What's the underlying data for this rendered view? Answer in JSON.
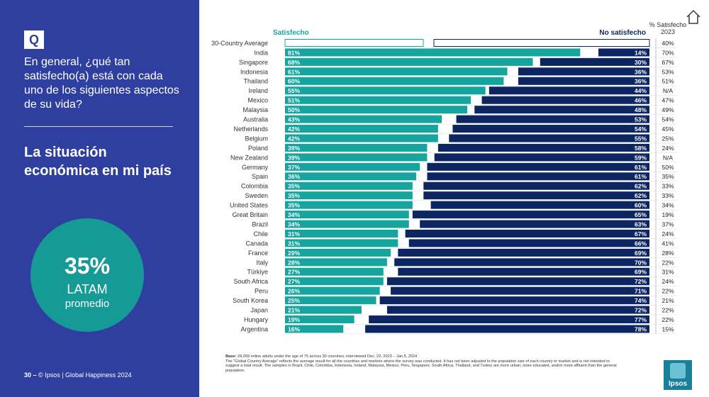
{
  "left": {
    "q_badge": "Q",
    "question": "En general, ¿qué tan satisfecho(a) está con cada uno de los siguientes aspectos de su vida?",
    "topic": "La situación económica en mi país",
    "avg_pct": "35%",
    "avg_region": "LATAM",
    "avg_label": "promedio",
    "footer_page": "30 –",
    "footer_text": "© Ipsos | Global Happiness 2024"
  },
  "notes": {
    "base_label": "Base:",
    "base_text": "24,269 online adults under the age of 75 across 30 countries, interviewed Dec. 22, 2023 – Jan.5, 2024",
    "line2": "The \"Global Country Average\" reflects the average result for all the countries and markets where the survey was conducted. It has not been adjusted to the population size of each country or market and is not intended to suggest a total result.   The samples in Brazil, Chile, Colombia, Indonesia, Ireland, Malaysia, Mexico, Peru, Singapore, South Africa, Thailand, and Turkey are more urban, more educated, and/or more affluent than the general population."
  },
  "logo": {
    "text": "Ipsos"
  },
  "colors": {
    "panel": "#2e3fa0",
    "satisfied": "#16a59e",
    "not_satisfied": "#0d2561",
    "circle": "#159a96"
  },
  "chart_data": {
    "type": "bar",
    "legend": {
      "satisfied": "Satisfecho",
      "not_satisfied": "No satisfecho"
    },
    "col_header": [
      "% Satisfecho",
      "2023"
    ],
    "countries": [
      "30-Country Average",
      "India",
      "Singapore",
      "Indonesia",
      "Thailand",
      "Ireland",
      "Mexico",
      "Malaysia",
      "Australia",
      "Netherlands",
      "Belgium",
      "Poland",
      "New Zealand",
      "Germany",
      "Spain",
      "Colombia",
      "Sweden",
      "United States",
      "Great Britain",
      "Brazil",
      "Chile",
      "Canada",
      "France",
      "Italy",
      "Türkiye",
      "South Africa",
      "Peru",
      "South Korea",
      "Japan",
      "Hungary",
      "Argentina"
    ],
    "satisfied": [
      null,
      81,
      68,
      61,
      60,
      55,
      51,
      50,
      43,
      42,
      42,
      39,
      39,
      37,
      36,
      35,
      35,
      35,
      34,
      34,
      31,
      31,
      29,
      28,
      27,
      27,
      26,
      25,
      21,
      19,
      16
    ],
    "not_satisfied": [
      null,
      14,
      30,
      36,
      36,
      44,
      46,
      48,
      53,
      54,
      55,
      58,
      59,
      61,
      61,
      62,
      62,
      60,
      65,
      63,
      67,
      66,
      69,
      70,
      69,
      72,
      71,
      74,
      72,
      77,
      78
    ],
    "satisfied_labels": [
      "",
      "81%",
      "68%",
      "61%",
      "60%",
      "55%",
      "51%",
      "50%",
      "43%",
      "42%",
      "42%",
      "39%",
      "39%",
      "37%",
      "36%",
      "35%",
      "35%",
      "35%",
      "34%",
      "34%",
      "31%",
      "31%",
      "29%",
      "28%",
      "27%",
      "27%",
      "26%",
      "25%",
      "21%",
      "19%",
      "16%"
    ],
    "not_satisfied_labels": [
      "",
      "14%",
      "30%",
      "36%",
      "36%",
      "44%",
      "46%",
      "48%",
      "53%",
      "54%",
      "55%",
      "58%",
      "59%",
      "61%",
      "61%",
      "62%",
      "62%",
      "60%",
      "65%",
      "63%",
      "67%",
      "66%",
      "69%",
      "70%",
      "69%",
      "72%",
      "71%",
      "74%",
      "72%",
      "77%",
      "78%"
    ],
    "prev_2023": [
      "40%",
      "70%",
      "67%",
      "53%",
      "51%",
      "N/A",
      "47%",
      "49%",
      "54%",
      "45%",
      "25%",
      "24%",
      "N/A",
      "50%",
      "35%",
      "33%",
      "33%",
      "34%",
      "19%",
      "37%",
      "24%",
      "41%",
      "28%",
      "22%",
      "31%",
      "24%",
      "22%",
      "21%",
      "22%",
      "22%",
      "15%"
    ],
    "xlim": [
      0,
      100
    ]
  }
}
